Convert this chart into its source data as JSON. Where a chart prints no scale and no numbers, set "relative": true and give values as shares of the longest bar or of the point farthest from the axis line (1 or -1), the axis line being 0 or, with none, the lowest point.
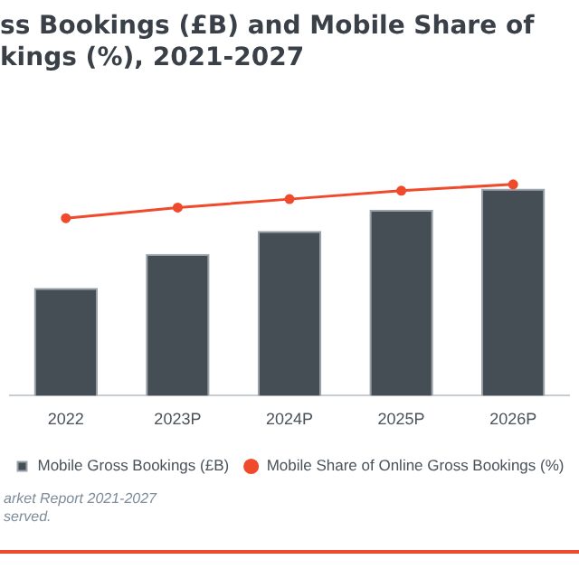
{
  "chart_data": {
    "type": "bar",
    "title": "ss Bookings (£B) and Mobile Share of\nkings (%), 2021-2027",
    "categories": [
      "2022",
      "2023P",
      "2024P",
      "2025P",
      "2026P"
    ],
    "series": [
      {
        "name": "Mobile Gross Bookings (£B)",
        "color": "#454d55",
        "values": [
          0.51,
          0.67,
          0.78,
          0.88,
          0.98
        ]
      },
      {
        "name": "Mobile Share of Online Gross Bookings (%)",
        "type": "line",
        "color": "#f04a2c",
        "values": [
          0.84,
          0.89,
          0.93,
          0.97,
          1
        ]
      }
    ],
    "relative": true,
    "grid": false,
    "legend": "bottom",
    "marker": "circle",
    "annotations": [
      "arket Report 2021-2027",
      "served."
    ]
  }
}
